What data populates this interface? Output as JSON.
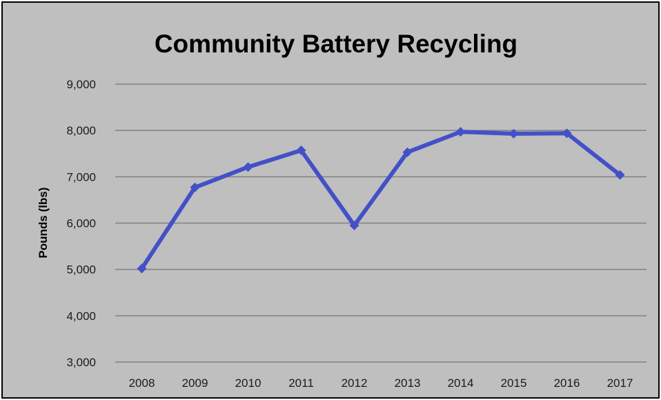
{
  "chart_data": {
    "type": "line",
    "title": "Community Battery Recycling",
    "xlabel": "",
    "ylabel": "Pounds (lbs)",
    "categories": [
      "2008",
      "2009",
      "2010",
      "2011",
      "2012",
      "2013",
      "2014",
      "2015",
      "2016",
      "2017"
    ],
    "series": [
      {
        "values": [
          5020,
          6770,
          7210,
          7570,
          5950,
          7530,
          7970,
          7930,
          7940,
          7040
        ],
        "color": "#4350c8",
        "marker": "diamond"
      }
    ],
    "ylim": [
      3000,
      9000
    ],
    "yticks": [
      3000,
      4000,
      5000,
      6000,
      7000,
      8000,
      9000
    ],
    "ytick_labels": [
      "3,000",
      "4,000",
      "5,000",
      "6,000",
      "7,000",
      "8,000",
      "9,000"
    ],
    "grid": true,
    "legend": "none",
    "colors": {
      "background": "#bfbfbf",
      "gridline": "#808080",
      "line": "#4350c8",
      "border": "#000000"
    }
  }
}
